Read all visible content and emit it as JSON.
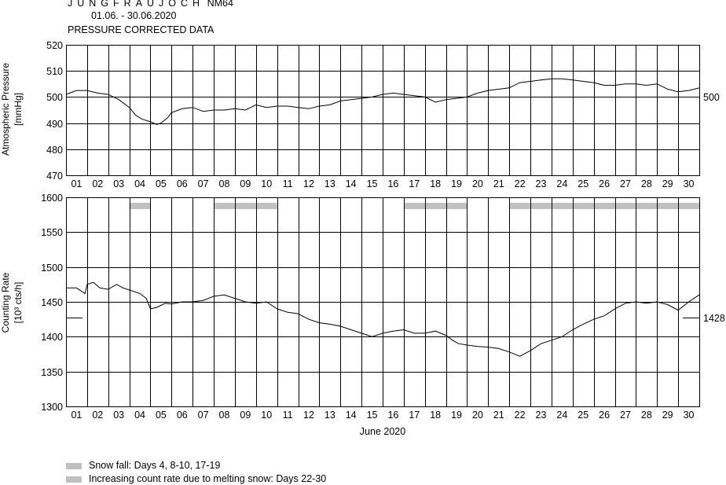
{
  "header": {
    "station": "JUNGFRAUJOCH",
    "monitor": "NM64",
    "date_range": "01.06. - 30.06.2020",
    "subtitle": "PRESSURE CORRECTED DATA"
  },
  "legend": {
    "snow_fall": "Snow fall: Days 4, 8-10, 17-19",
    "melting_snow": "Increasing count rate due to melting snow: Days 22-30",
    "bar_color": "#c0c0c0"
  },
  "chart_data": [
    {
      "type": "line",
      "ylabel": "Atmospheric Pressure",
      "yunit": "[mmHg]",
      "ylim": [
        470,
        520
      ],
      "yticks": [
        "470",
        "480",
        "490",
        "500",
        "510",
        "520"
      ],
      "xlim": [
        0,
        30
      ],
      "day_labels": [
        "01",
        "02",
        "03",
        "04",
        "05",
        "06",
        "07",
        "08",
        "09",
        "10",
        "11",
        "12",
        "13",
        "14",
        "15",
        "16",
        "17",
        "18",
        "19",
        "20",
        "21",
        "22",
        "23",
        "24",
        "25",
        "26",
        "27",
        "28",
        "29",
        "30"
      ],
      "reference_label": "500",
      "reference_value": 500,
      "grid": true,
      "series": [
        {
          "x": [
            0,
            0.5,
            1,
            1.5,
            2,
            2.5,
            3,
            3.3,
            3.6,
            4,
            4.3,
            4.5,
            4.8,
            5,
            5.5,
            6,
            6.5,
            7,
            7.5,
            8,
            8.5,
            9,
            9.5,
            10,
            10.5,
            11,
            11.5,
            12,
            12.5,
            13,
            13.5,
            14,
            14.5,
            15,
            15.5,
            16,
            16.5,
            17,
            17.5,
            18,
            18.5,
            19,
            19.5,
            20,
            20.5,
            21,
            21.5,
            22,
            22.5,
            23,
            23.5,
            24,
            24.5,
            25,
            25.5,
            26,
            26.5,
            27,
            27.5,
            28,
            28.5,
            29,
            29.5,
            30
          ],
          "y": [
            501,
            502.5,
            502.5,
            501.5,
            501,
            499,
            496,
            493,
            491.5,
            490.5,
            489.5,
            490,
            492,
            494,
            495.5,
            496,
            494.5,
            495,
            495,
            495.5,
            495,
            497,
            496,
            496.5,
            496.5,
            496,
            495.5,
            496.5,
            497,
            498.5,
            499,
            499.5,
            500,
            501,
            501.5,
            501,
            500.5,
            500,
            498,
            499,
            499.5,
            500,
            501.5,
            502.5,
            503,
            503.5,
            505.5,
            506,
            506.5,
            507,
            507,
            506.5,
            506,
            505.5,
            504.5,
            504.5,
            505,
            505,
            504.5,
            505,
            503,
            502,
            502.5,
            503.5
          ]
        }
      ]
    },
    {
      "type": "line",
      "ylabel": "Counting Rate",
      "yunit": "[10³ cts/h]",
      "ylim": [
        1300,
        1600
      ],
      "yticks": [
        "1300",
        "1350",
        "1400",
        "1450",
        "1500",
        "1550",
        "1600"
      ],
      "xlim": [
        0,
        30
      ],
      "xlabel": "June 2020",
      "day_labels": [
        "01",
        "02",
        "03",
        "04",
        "05",
        "06",
        "07",
        "08",
        "09",
        "10",
        "11",
        "12",
        "13",
        "14",
        "15",
        "16",
        "17",
        "18",
        "19",
        "20",
        "21",
        "22",
        "23",
        "24",
        "25",
        "26",
        "27",
        "28",
        "29",
        "30"
      ],
      "reference_label": "1428",
      "reference_value": 1428,
      "grid": true,
      "snow_bars": [
        [
          3,
          4
        ],
        [
          7,
          10
        ],
        [
          16,
          19
        ],
        [
          21,
          30
        ]
      ],
      "series": [
        {
          "x": [
            0,
            0.5,
            0.9,
            1,
            1.3,
            1.6,
            2,
            2.4,
            2.7,
            3,
            3.5,
            3.8,
            4,
            4.3,
            4.7,
            5,
            5.5,
            6,
            6.5,
            7,
            7.5,
            8,
            8.5,
            9,
            9.5,
            10,
            10.5,
            11,
            11.5,
            12,
            12.5,
            13,
            13.5,
            14,
            14.5,
            15,
            15.5,
            16,
            16.5,
            17,
            17.5,
            18,
            18.3,
            18.6,
            19,
            19.5,
            20,
            20.5,
            21,
            21.5,
            22,
            22.5,
            23,
            23.5,
            24,
            24.5,
            25,
            25.5,
            26,
            26.5,
            27,
            27.5,
            28,
            28.5,
            29,
            29.5,
            30
          ],
          "y": [
            1470,
            1470,
            1462,
            1475,
            1478,
            1470,
            1468,
            1475,
            1470,
            1467,
            1462,
            1455,
            1440,
            1442,
            1448,
            1447,
            1450,
            1450,
            1452,
            1458,
            1460,
            1455,
            1450,
            1448,
            1450,
            1440,
            1435,
            1433,
            1425,
            1420,
            1418,
            1415,
            1410,
            1405,
            1400,
            1405,
            1408,
            1410,
            1405,
            1405,
            1408,
            1402,
            1395,
            1390,
            1388,
            1386,
            1385,
            1383,
            1378,
            1372,
            1380,
            1390,
            1395,
            1400,
            1410,
            1418,
            1425,
            1430,
            1440,
            1448,
            1450,
            1448,
            1450,
            1446,
            1438,
            1450,
            1460
          ]
        }
      ]
    }
  ]
}
